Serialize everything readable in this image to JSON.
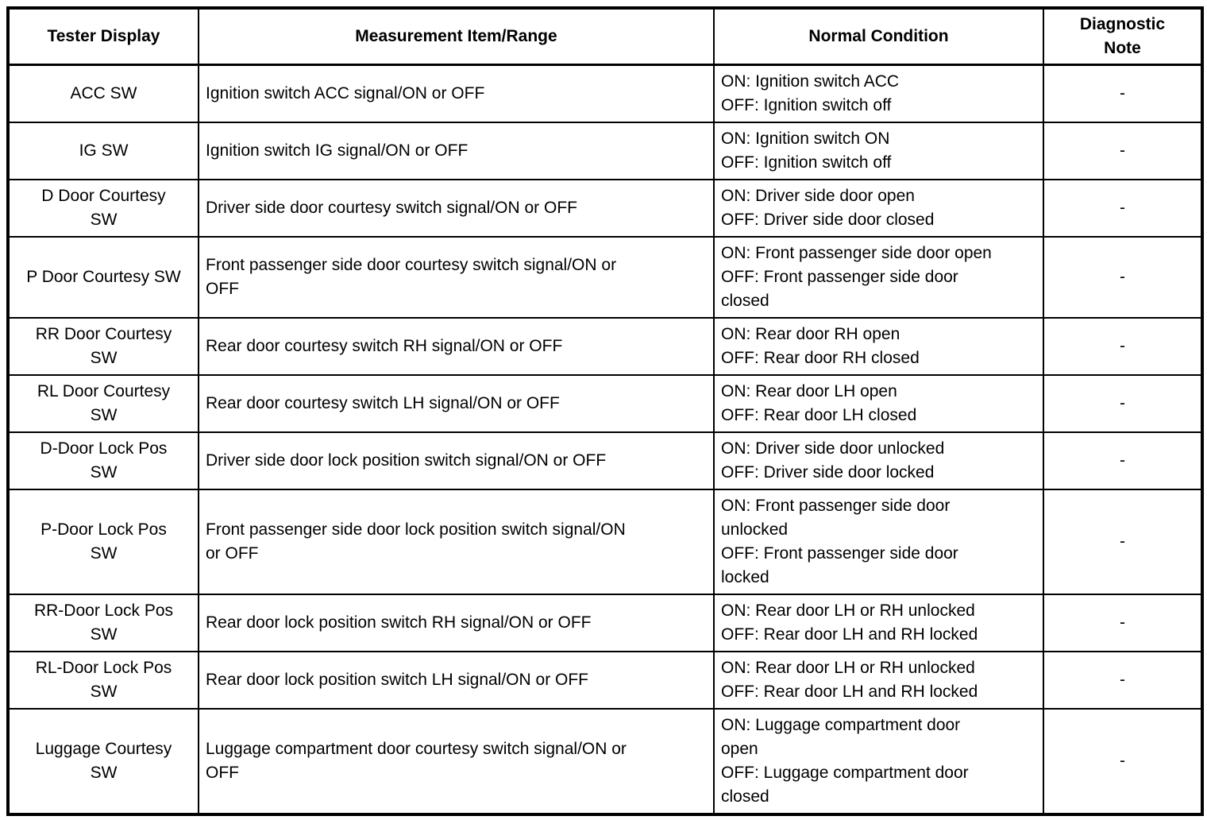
{
  "table": {
    "headers": [
      "Tester Display",
      "Measurement Item/Range",
      "Normal Condition",
      "Diagnostic\nNote"
    ],
    "rows": [
      {
        "tester_display": "ACC SW",
        "measurement": "Ignition switch ACC signal/ON or OFF",
        "normal_condition": "ON: Ignition switch ACC\nOFF: Ignition switch off",
        "diagnostic_note": "-"
      },
      {
        "tester_display": "IG SW",
        "measurement": "Ignition switch IG signal/ON or OFF",
        "normal_condition": "ON: Ignition switch ON\nOFF: Ignition switch off",
        "diagnostic_note": "-"
      },
      {
        "tester_display": "D Door Courtesy\nSW",
        "measurement": "Driver side door courtesy switch signal/ON or OFF",
        "normal_condition": "ON: Driver side door open\nOFF: Driver side door closed",
        "diagnostic_note": "-"
      },
      {
        "tester_display": "P Door Courtesy SW",
        "measurement": "Front passenger side door courtesy switch signal/ON or\nOFF",
        "normal_condition": "ON: Front passenger side door open\nOFF: Front passenger side door\nclosed",
        "diagnostic_note": "-"
      },
      {
        "tester_display": "RR Door Courtesy\nSW",
        "measurement": "Rear door courtesy switch RH signal/ON or OFF",
        "normal_condition": "ON: Rear door RH open\nOFF: Rear door RH closed",
        "diagnostic_note": "-"
      },
      {
        "tester_display": "RL Door Courtesy\nSW",
        "measurement": "Rear door courtesy switch LH signal/ON or OFF",
        "normal_condition": "ON: Rear door LH open\nOFF: Rear door LH closed",
        "diagnostic_note": "-"
      },
      {
        "tester_display": "D-Door Lock Pos\nSW",
        "measurement": "Driver side door lock position switch signal/ON or OFF",
        "normal_condition": "ON: Driver side door unlocked\nOFF: Driver side door locked",
        "diagnostic_note": "-"
      },
      {
        "tester_display": "P-Door Lock Pos\nSW",
        "measurement": "Front passenger side door lock position switch signal/ON\nor OFF",
        "normal_condition": "ON: Front passenger side door\nunlocked\nOFF: Front passenger side door\nlocked",
        "diagnostic_note": "-"
      },
      {
        "tester_display": "RR-Door Lock Pos\nSW",
        "measurement": "Rear door lock position switch RH signal/ON or OFF",
        "normal_condition": "ON: Rear door LH or RH unlocked\nOFF: Rear door LH and RH locked",
        "diagnostic_note": "-"
      },
      {
        "tester_display": "RL-Door Lock Pos\nSW",
        "measurement": "Rear door lock position switch LH signal/ON or OFF",
        "normal_condition": "ON: Rear door LH or RH unlocked\nOFF: Rear door LH and RH locked",
        "diagnostic_note": "-"
      },
      {
        "tester_display": "Luggage Courtesy\nSW",
        "measurement": "Luggage compartment door courtesy switch signal/ON or\nOFF",
        "normal_condition": "ON: Luggage compartment door\nopen\nOFF: Luggage compartment door\nclosed",
        "diagnostic_note": "-"
      }
    ]
  }
}
